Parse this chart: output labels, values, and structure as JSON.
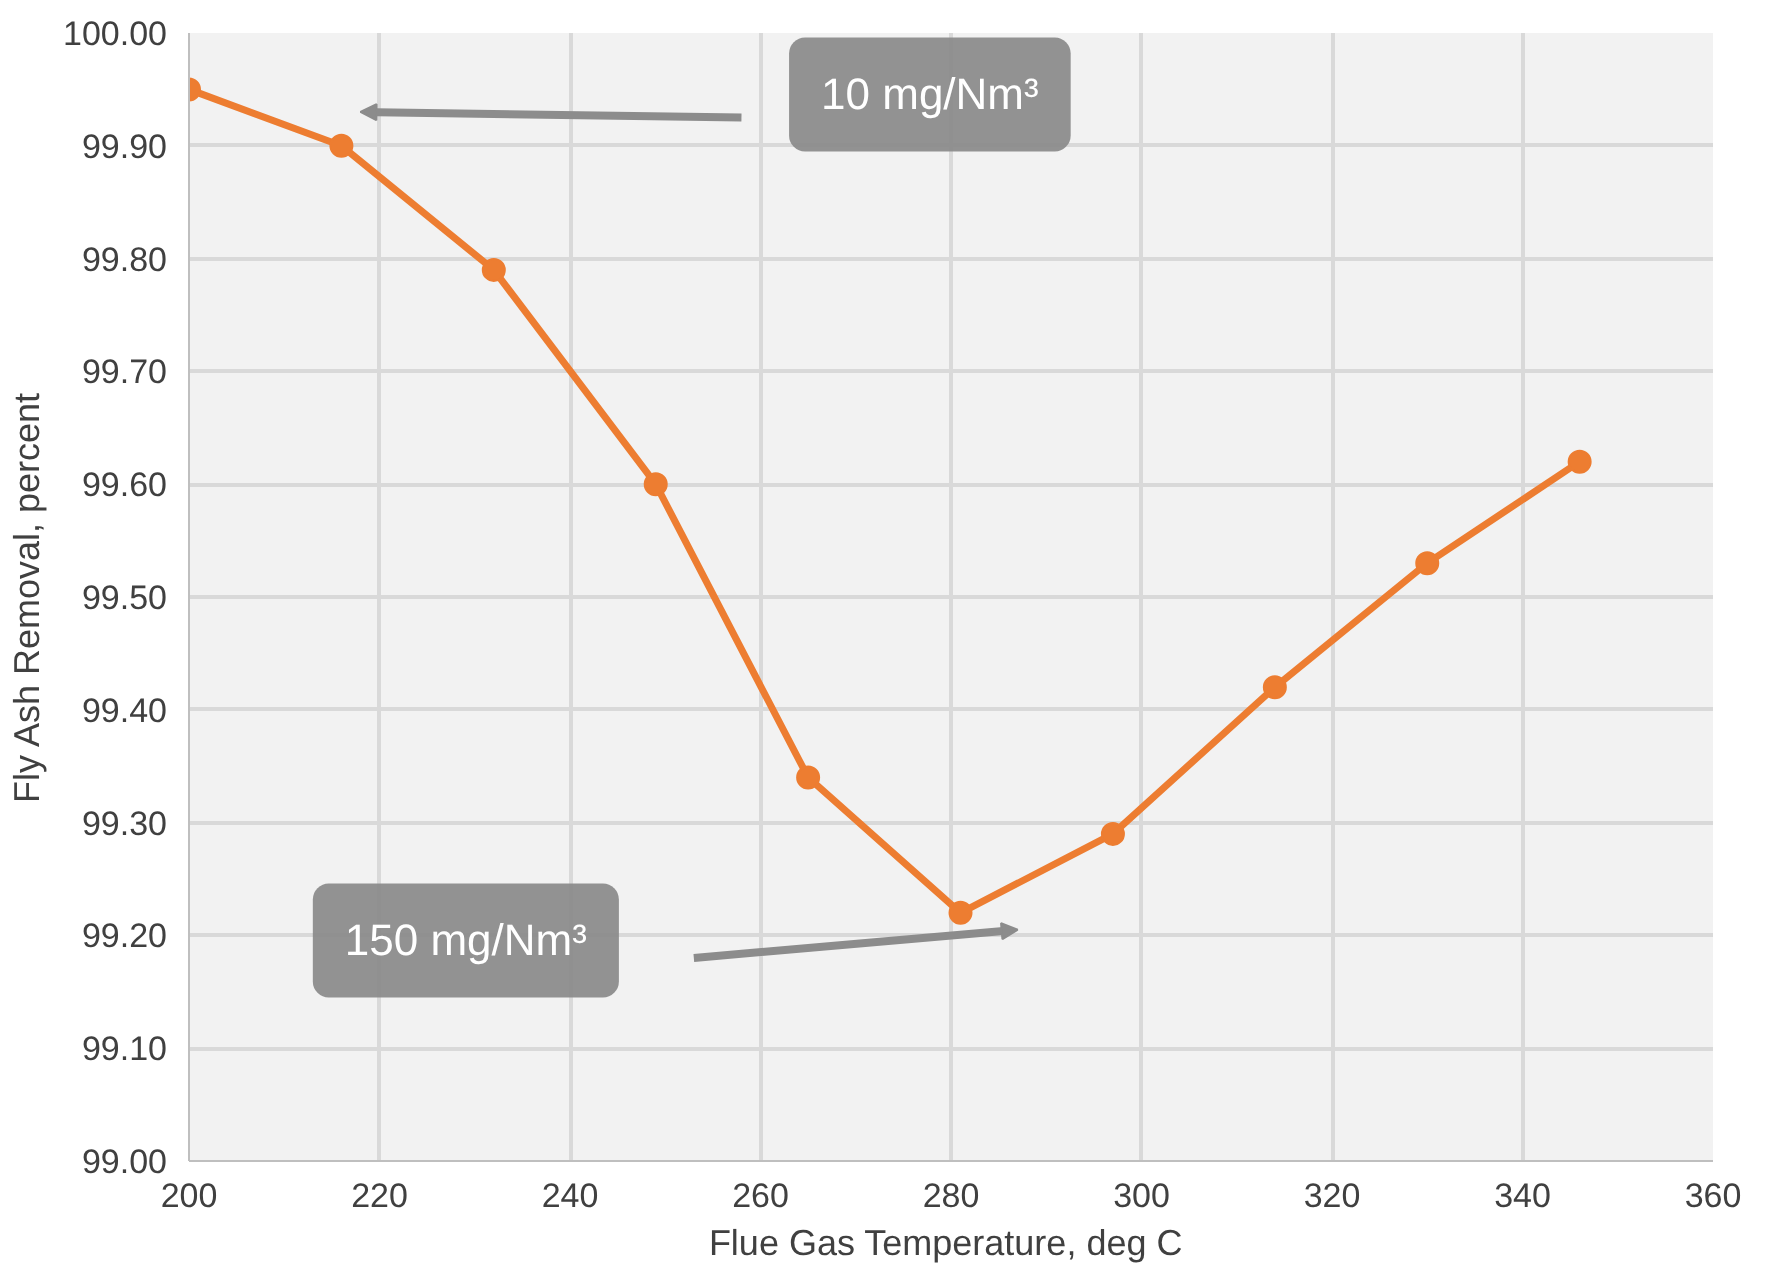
{
  "chart_data": {
    "type": "line",
    "xlabel": "Flue Gas Temperature,  deg C",
    "ylabel": "Fly Ash Removal, percent",
    "x": [
      200,
      216,
      232,
      249,
      265,
      281,
      297,
      314,
      330,
      346
    ],
    "series": [
      {
        "color": "#ed7d31",
        "values": [
          99.95,
          99.9,
          99.79,
          99.6,
          99.34,
          99.22,
          99.29,
          99.42,
          99.53,
          99.62
        ]
      }
    ],
    "xlim": [
      200,
      360
    ],
    "xticks": [
      200,
      220,
      240,
      260,
      280,
      300,
      320,
      340,
      360
    ],
    "ylim": [
      99.0,
      100.0
    ],
    "yticks": [
      {
        "value": 99.0,
        "label": "99.00"
      },
      {
        "value": 99.1,
        "label": "99.10"
      },
      {
        "value": 99.2,
        "label": "99.20"
      },
      {
        "value": 99.3,
        "label": "99.30"
      },
      {
        "value": 99.4,
        "label": "99.40"
      },
      {
        "value": 99.5,
        "label": "99.50"
      },
      {
        "value": 99.6,
        "label": "99.60"
      },
      {
        "value": 99.7,
        "label": "99.70"
      },
      {
        "value": 99.8,
        "label": "99.80"
      },
      {
        "value": 99.9,
        "label": "99.90"
      },
      {
        "value": 100.0,
        "label": "100.00"
      }
    ],
    "grid": true,
    "marker": "circle",
    "line_style": "solid",
    "annotations": [
      "10 mg/Nm³",
      "150 mg/Nm³"
    ]
  }
}
